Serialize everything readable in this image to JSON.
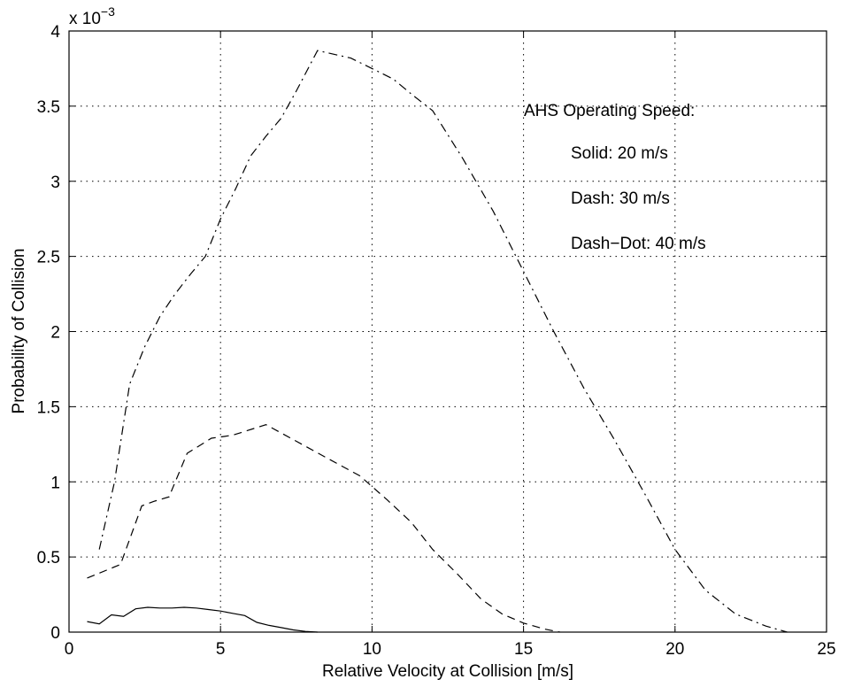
{
  "chart_data": {
    "type": "line",
    "title": "",
    "xlabel": "Relative Velocity at Collision [m/s]",
    "ylabel": "Probability of Collision",
    "xlim": [
      0,
      25
    ],
    "ylim": [
      0,
      4
    ],
    "y_multiplier_label": {
      "base": "x 10",
      "exponent": "−3"
    },
    "xticks": [
      0,
      5,
      10,
      15,
      20,
      25
    ],
    "yticks": [
      0,
      0.5,
      1,
      1.5,
      2,
      2.5,
      3,
      3.5,
      4
    ],
    "grid": true,
    "annotations": [
      "AHS Operating Speed:",
      "Solid: 20 m/s",
      "Dash: 30 m/s",
      "Dash−Dot: 40 m/s"
    ],
    "series": [
      {
        "style": "solid",
        "x": [
          0.6,
          1.0,
          1.4,
          1.8,
          2.2,
          2.6,
          3.0,
          3.4,
          3.8,
          4.2,
          4.6,
          5.0,
          5.4,
          5.8,
          6.2,
          6.6,
          7.0,
          7.4,
          7.8,
          8.2
        ],
        "y": [
          0.07,
          0.055,
          0.115,
          0.105,
          0.155,
          0.165,
          0.16,
          0.16,
          0.165,
          0.16,
          0.15,
          0.14,
          0.125,
          0.11,
          0.065,
          0.045,
          0.03,
          0.015,
          0.005,
          0.0
        ]
      },
      {
        "style": "dash",
        "x": [
          0.6,
          1.7,
          2.4,
          2.8,
          3.3,
          3.9,
          4.7,
          5.4,
          6.5,
          7.5,
          8.5,
          9.6,
          10.5,
          11.3,
          12.0,
          12.8,
          13.6,
          14.3,
          15.0,
          15.7,
          16.2
        ],
        "y": [
          0.36,
          0.45,
          0.84,
          0.87,
          0.9,
          1.19,
          1.29,
          1.31,
          1.38,
          1.27,
          1.16,
          1.04,
          0.88,
          0.73,
          0.55,
          0.39,
          0.22,
          0.12,
          0.06,
          0.02,
          0.0
        ]
      },
      {
        "style": "dash-dot",
        "x": [
          1.0,
          1.5,
          2.0,
          2.5,
          3.0,
          3.5,
          4.0,
          4.5,
          5.0,
          5.5,
          6.0,
          6.5,
          7.0,
          7.5,
          8.2,
          9.3,
          10.0,
          10.7,
          11.3,
          12.0,
          13.0,
          14.0,
          15.0,
          16.0,
          17.0,
          18.0,
          19.0,
          20.0,
          21.0,
          22.0,
          23.0,
          23.7
        ],
        "y": [
          0.55,
          1.0,
          1.65,
          1.9,
          2.1,
          2.25,
          2.38,
          2.5,
          2.75,
          2.95,
          3.17,
          3.3,
          3.42,
          3.6,
          3.87,
          3.82,
          3.75,
          3.68,
          3.58,
          3.47,
          3.15,
          2.8,
          2.4,
          2.0,
          1.62,
          1.28,
          0.92,
          0.55,
          0.28,
          0.12,
          0.04,
          0.0
        ]
      }
    ]
  }
}
